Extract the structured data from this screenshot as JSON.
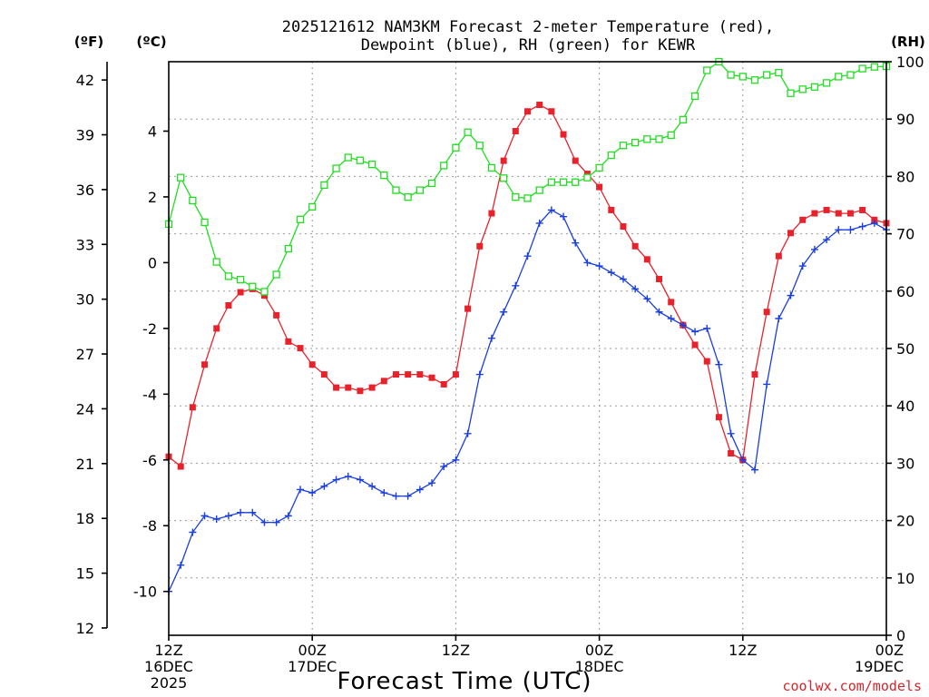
{
  "chart_data": {
    "type": "line",
    "title_line1": "2025121612 NAM3KM Forecast 2-meter Temperature (red),",
    "title_line2": "Dewpoint (blue), RH (green) for KEWR",
    "xlabel": "Forecast Time (UTC)",
    "credit": "coolwx.com/models",
    "units": {
      "fahrenheit": "(ºF)",
      "celsius": "(ºC)",
      "rh": "(RH)"
    },
    "x_hours_range": [
      0,
      60
    ],
    "x_ticks": [
      {
        "hour": 0,
        "line1": "12Z",
        "line2": "16DEC",
        "line3": "2025"
      },
      {
        "hour": 12,
        "line1": "00Z",
        "line2": "17DEC",
        "line3": ""
      },
      {
        "hour": 24,
        "line1": "12Z",
        "line2": "",
        "line3": ""
      },
      {
        "hour": 36,
        "line1": "00Z",
        "line2": "18DEC",
        "line3": ""
      },
      {
        "hour": 48,
        "line1": "12Z",
        "line2": "",
        "line3": ""
      },
      {
        "hour": 60,
        "line1": "00Z",
        "line2": "19DEC",
        "line3": ""
      }
    ],
    "y_celsius": {
      "range": [
        -11.333,
        6.111
      ],
      "ticks": [
        -10,
        -8,
        -6,
        -4,
        -2,
        0,
        2,
        4
      ]
    },
    "y_fahrenheit": {
      "range": [
        11.6,
        43.0
      ],
      "ticks": [
        12,
        15,
        18,
        21,
        24,
        27,
        30,
        33,
        36,
        39,
        42
      ]
    },
    "y_rh": {
      "range": [
        0,
        100
      ],
      "ticks": [
        0,
        10,
        20,
        30,
        40,
        50,
        60,
        70,
        80,
        90,
        100
      ]
    },
    "series": [
      {
        "name": "2-meter Temperature",
        "axis": "celsius",
        "color": "#e8222a",
        "marker": "filled-square",
        "hours": [
          0,
          1,
          2,
          3,
          4,
          5,
          6,
          7,
          8,
          9,
          10,
          11,
          12,
          13,
          14,
          15,
          16,
          17,
          18,
          19,
          20,
          21,
          22,
          23,
          24,
          25,
          26,
          27,
          28,
          29,
          30,
          31,
          32,
          33,
          34,
          35,
          36,
          37,
          38,
          39,
          40,
          41,
          42,
          43,
          44,
          45,
          46,
          47,
          48,
          49,
          50,
          51,
          52,
          53,
          54,
          55,
          56,
          57,
          58,
          59,
          60
        ],
        "values": [
          -5.9,
          -6.2,
          -4.4,
          -3.1,
          -2.0,
          -1.3,
          -0.9,
          -0.8,
          -1.0,
          -1.6,
          -2.4,
          -2.6,
          -3.1,
          -3.4,
          -3.8,
          -3.8,
          -3.9,
          -3.8,
          -3.6,
          -3.4,
          -3.4,
          -3.4,
          -3.5,
          -3.7,
          -3.4,
          -1.4,
          0.5,
          1.5,
          3.1,
          4.0,
          4.6,
          4.8,
          4.6,
          3.9,
          3.1,
          2.7,
          2.3,
          1.6,
          1.1,
          0.5,
          0.1,
          -0.5,
          -1.2,
          -1.9,
          -2.5,
          -3.0,
          -4.7,
          -5.8,
          -6.0,
          -3.4,
          -1.5,
          0.2,
          0.9,
          1.3,
          1.5,
          1.6,
          1.5,
          1.5,
          1.6,
          1.3,
          1.2
        ]
      },
      {
        "name": "Dewpoint",
        "axis": "celsius",
        "color": "#1a3fe0",
        "marker": "plus",
        "hours": [
          0,
          1,
          2,
          3,
          4,
          5,
          6,
          7,
          8,
          9,
          10,
          11,
          12,
          13,
          14,
          15,
          16,
          17,
          18,
          19,
          20,
          21,
          22,
          23,
          24,
          25,
          26,
          27,
          28,
          29,
          30,
          31,
          32,
          33,
          34,
          35,
          36,
          37,
          38,
          39,
          40,
          41,
          42,
          43,
          44,
          45,
          46,
          47,
          48,
          49,
          50,
          51,
          52,
          53,
          54,
          55,
          56,
          57,
          58,
          59,
          60
        ],
        "values": [
          -10.0,
          -9.2,
          -8.2,
          -7.7,
          -7.8,
          -7.7,
          -7.6,
          -7.6,
          -7.9,
          -7.9,
          -7.7,
          -6.9,
          -7.0,
          -6.8,
          -6.6,
          -6.5,
          -6.6,
          -6.8,
          -7.0,
          -7.1,
          -7.1,
          -6.9,
          -6.7,
          -6.2,
          -6.0,
          -5.2,
          -3.4,
          -2.3,
          -1.5,
          -0.7,
          0.2,
          1.2,
          1.6,
          1.4,
          0.6,
          0.0,
          -0.1,
          -0.3,
          -0.5,
          -0.8,
          -1.1,
          -1.5,
          -1.7,
          -1.9,
          -2.1,
          -2.0,
          -3.1,
          -5.2,
          -6.0,
          -6.3,
          -3.7,
          -1.7,
          -1.0,
          -0.1,
          0.4,
          0.7,
          1.0,
          1.0,
          1.1,
          1.2,
          1.0
        ]
      },
      {
        "name": "RH",
        "axis": "rh",
        "color": "#22dd22",
        "marker": "open-square",
        "hours": [
          0,
          1,
          2,
          3,
          4,
          5,
          6,
          7,
          8,
          9,
          10,
          11,
          12,
          13,
          14,
          15,
          16,
          17,
          18,
          19,
          20,
          21,
          22,
          23,
          24,
          25,
          26,
          27,
          28,
          29,
          30,
          31,
          32,
          33,
          34,
          35,
          36,
          37,
          38,
          39,
          40,
          41,
          42,
          43,
          44,
          45,
          46,
          47,
          48,
          49,
          50,
          51,
          52,
          53,
          54,
          55,
          56,
          57,
          58,
          59,
          60
        ],
        "values": [
          71.7,
          79.8,
          75.8,
          72.0,
          65.1,
          62.6,
          62.0,
          60.8,
          59.9,
          62.9,
          67.4,
          72.5,
          74.7,
          78.5,
          81.4,
          83.3,
          82.8,
          82.1,
          80.2,
          77.6,
          76.4,
          77.6,
          78.8,
          81.9,
          85.0,
          87.7,
          85.4,
          81.5,
          79.7,
          76.4,
          76.2,
          77.6,
          79.0,
          79.0,
          79.0,
          79.8,
          81.5,
          83.7,
          85.4,
          85.9,
          86.5,
          86.5,
          87.2,
          89.9,
          94.0,
          98.5,
          100.0,
          97.7,
          97.4,
          96.8,
          97.7,
          98.1,
          94.5,
          95.2,
          95.6,
          96.3,
          97.4,
          97.7,
          98.8,
          99.1,
          99.2
        ]
      }
    ]
  }
}
